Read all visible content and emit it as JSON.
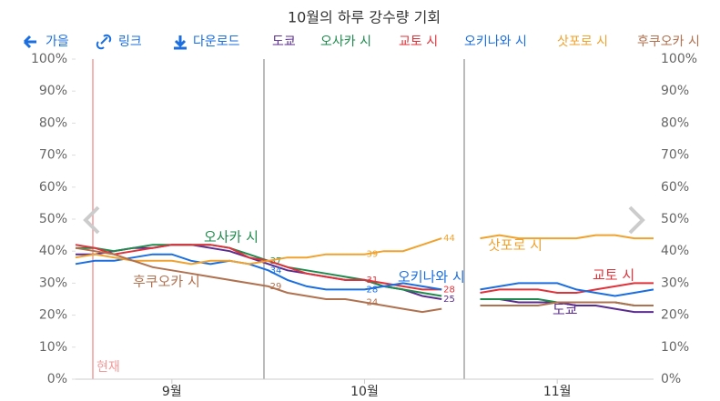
{
  "toolbar": [
    "가을",
    "링크",
    "다운로드"
  ],
  "chart_data": {
    "type": "line",
    "title": "10월의 하루 강수량 기회",
    "current_label": "현재",
    "categories": [
      null,
      null,
      null,
      null,
      null,
      "9월",
      null,
      null,
      null,
      null,
      null,
      null,
      null,
      null,
      null,
      "10월",
      null,
      null,
      null,
      null,
      null,
      null,
      null,
      null,
      null,
      "11월",
      null,
      null,
      null,
      null,
      null
    ],
    "ylim": [
      0,
      100
    ],
    "yticks": [
      {
        "value": 0,
        "label": "0%"
      },
      {
        "value": 10,
        "label": "10%"
      },
      {
        "value": 20,
        "label": "20%"
      },
      {
        "value": 30,
        "label": "30%"
      },
      {
        "value": 40,
        "label": "40%"
      },
      {
        "value": 50,
        "label": "50%"
      },
      {
        "value": 60,
        "label": "60%"
      },
      {
        "value": 70,
        "label": "70%"
      },
      {
        "value": 80,
        "label": "80%"
      },
      {
        "value": 90,
        "label": "90%"
      },
      {
        "value": 100,
        "label": "100%"
      }
    ],
    "grid": false,
    "series": [
      {
        "name": "도쿄",
        "color": "#5b2c8f",
        "values": [
          39,
          39,
          40,
          41,
          41,
          42,
          42,
          41,
          40,
          38,
          36,
          34,
          33,
          32,
          31,
          31,
          29,
          28,
          26,
          25,
          null,
          25,
          25,
          24,
          24,
          24,
          23,
          23,
          22,
          21,
          21
        ]
      },
      {
        "name": "오사카 시",
        "color": "#1e8a4c",
        "values": [
          41,
          41,
          40,
          41,
          42,
          42,
          42,
          42,
          41,
          39,
          37,
          35,
          34,
          33,
          32,
          31,
          29,
          28,
          27,
          26,
          null,
          25,
          25,
          25,
          25,
          24,
          24,
          24,
          24,
          23,
          23
        ]
      },
      {
        "name": "교토 시",
        "color": "#e0323a",
        "values": [
          42,
          41,
          39,
          40,
          41,
          42,
          42,
          42,
          41,
          38,
          37,
          35,
          33,
          32,
          31,
          31,
          30,
          29,
          28,
          28,
          null,
          27,
          28,
          28,
          28,
          27,
          27,
          28,
          29,
          30,
          30
        ]
      },
      {
        "name": "오키나와 시",
        "color": "#1a6ee0",
        "values": [
          36,
          37,
          37,
          38,
          39,
          39,
          37,
          36,
          37,
          36,
          34,
          31,
          29,
          28,
          28,
          28,
          29,
          30,
          29,
          28,
          null,
          28,
          29,
          30,
          30,
          30,
          28,
          27,
          26,
          27,
          28
        ]
      },
      {
        "name": "삿포로 시",
        "color": "#f0a22e",
        "values": [
          38,
          39,
          38,
          37,
          37,
          37,
          36,
          37,
          37,
          36,
          37,
          38,
          38,
          39,
          39,
          39,
          40,
          40,
          42,
          44,
          null,
          44,
          45,
          44,
          44,
          44,
          44,
          45,
          45,
          44,
          44
        ]
      },
      {
        "name": "후쿠오카 시",
        "color": "#b0714f",
        "values": [
          41,
          40,
          39,
          37,
          35,
          34,
          33,
          32,
          31,
          30,
          29,
          27,
          26,
          25,
          25,
          24,
          23,
          22,
          21,
          22,
          null,
          23,
          23,
          23,
          23,
          24,
          24,
          24,
          24,
          23,
          23
        ]
      }
    ]
  }
}
